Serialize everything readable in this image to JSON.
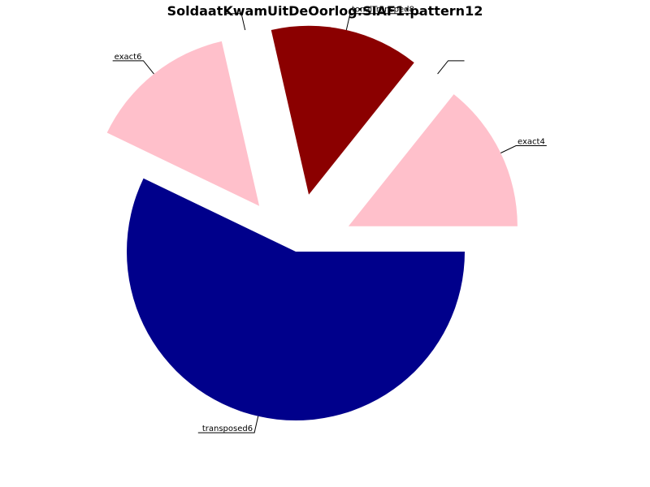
{
  "chart_data": {
    "type": "pie",
    "title": "SoldaatKwamUitDeOorlog:SIAF1:pattern12",
    "slices": [
      {
        "label": "exact4",
        "value": 1,
        "color": "#FFC0CB",
        "exploded": true
      },
      {
        "label": "",
        "value": 0,
        "color": "#FFC0CB",
        "exploded": true
      },
      {
        "label": "tonalTransped8",
        "value": 1,
        "color": "#8B0000",
        "exploded": true
      },
      {
        "label": "",
        "value": 0,
        "color": "#8B0000",
        "exploded": true
      },
      {
        "label": "exact6",
        "value": 1,
        "color": "#FFC0CB",
        "exploded": true
      },
      {
        "label": "transposed6",
        "value": 4,
        "color": "#00008B",
        "exploded": false
      }
    ]
  }
}
